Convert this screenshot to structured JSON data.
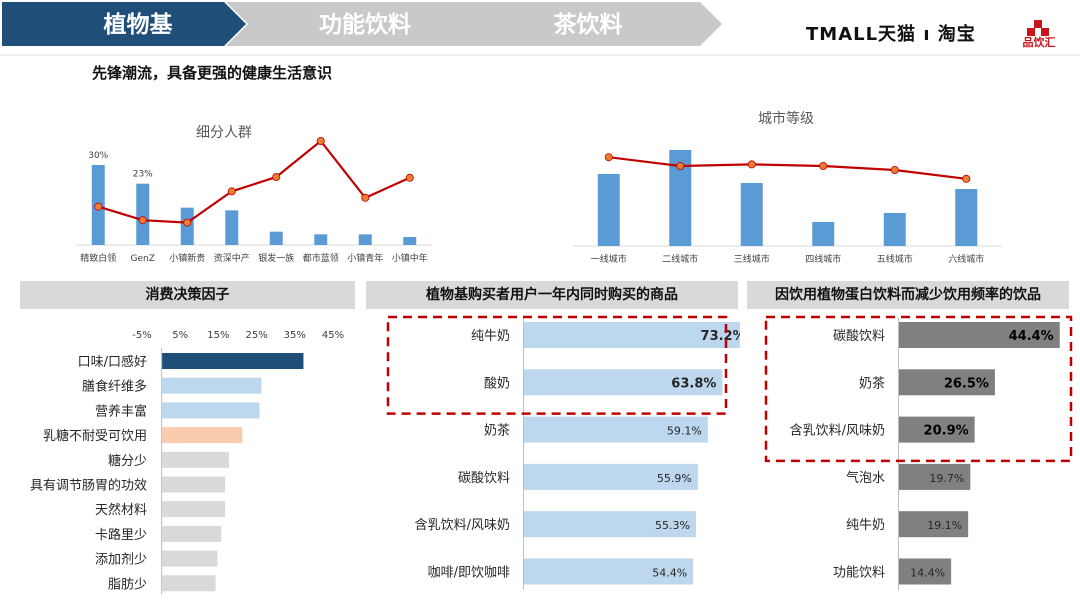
{
  "nav": {
    "steps": [
      {
        "label": "植物基",
        "active": true
      },
      {
        "label": "功能饮料",
        "active": false
      },
      {
        "label": "茶饮料",
        "active": false
      }
    ],
    "logo_tmall": "TMALL天猫 ı 淘宝",
    "logo_pinyinhui": "品饮汇"
  },
  "headline": "先锋潮流，具备更强的健康生活意识",
  "colors": {
    "nav_active": "#1f4e79",
    "nav_inactive": "#c9c9c9",
    "bar_blue": "#5b9bd5",
    "line_red": "#c00000",
    "dot_orange": "#ed7d31",
    "highlight_dark": "#1f4e79",
    "light_blue": "#bdd7ee",
    "peach": "#f8cbad",
    "grey_bar": "#d9d9d9",
    "dark_grey_bar": "#808080",
    "dashed_red": "#c00000"
  },
  "chart_data": [
    {
      "type": "bar",
      "title": "细分人群",
      "categories": [
        "精致白领",
        "GenZ",
        "小镇新贵",
        "资深中产",
        "银发一族",
        "都市蓝领",
        "小镇青年",
        "小镇中年"
      ],
      "series": [
        {
          "values": [
            30,
            23,
            14,
            13,
            5,
            4,
            4,
            3
          ],
          "render": "bar"
        },
        {
          "values": [
            0.48,
            0.31,
            0.28,
            0.67,
            0.85,
            1.3,
            0.59,
            0.84
          ],
          "render": "line"
        }
      ],
      "data_labels": [
        "30%",
        "23%",
        "",
        "",
        "",
        "",
        "",
        ""
      ],
      "ylim": [
        0,
        45
      ],
      "y2lim": [
        0,
        1.5
      ]
    },
    {
      "type": "bar",
      "title": "城市等级",
      "categories": [
        "一线城市",
        "二线城市",
        "三线城市",
        "四线城市",
        "五线城市",
        "六线城市"
      ],
      "series": [
        {
          "values": [
            24,
            32,
            21,
            8,
            11,
            19
          ],
          "render": "bar"
        },
        {
          "values": [
            1.11,
            1.0,
            1.02,
            1.0,
            0.95,
            0.84
          ],
          "render": "line"
        }
      ],
      "ylim": [
        0,
        40
      ],
      "y2lim": [
        0,
        1.5
      ]
    },
    {
      "type": "bar",
      "orientation": "horizontal",
      "title": "消费决策因子",
      "tick_labels": [
        "-5%",
        "5%",
        "15%",
        "25%",
        "35%",
        "45%"
      ],
      "xlim": [
        -5,
        45
      ],
      "categories": [
        "口味/口感好",
        "膳食纤维多",
        "营养丰富",
        "乳糖不耐受可饮用",
        "糖分少",
        "具有调节肠胃的功效",
        "天然材料",
        "卡路里少",
        "添加剂少",
        "脂肪少"
      ],
      "values": [
        37,
        26,
        25.5,
        21,
        17.5,
        16.5,
        16.5,
        15.5,
        14.5,
        14
      ],
      "bar_colors": [
        "#1f4e79",
        "#bdd7ee",
        "#bdd7ee",
        "#f8cbad",
        "#d9d9d9",
        "#d9d9d9",
        "#d9d9d9",
        "#d9d9d9",
        "#d9d9d9",
        "#d9d9d9"
      ]
    },
    {
      "type": "bar",
      "orientation": "horizontal",
      "title": "植物基购买者用户一年内同时购买的商品",
      "categories": [
        "纯牛奶",
        "酸奶",
        "奶茶",
        "碳酸饮料",
        "含乳饮料/风味奶",
        "咖啡/即饮咖啡"
      ],
      "values": [
        73.2,
        63.8,
        59.1,
        55.9,
        55.3,
        54.4
      ],
      "data_labels": [
        "73.2%",
        "63.8%",
        "59.1%",
        "55.9%",
        "55.3%",
        "54.4%"
      ],
      "highlighted": [
        "纯牛奶",
        "酸奶"
      ],
      "xlim": [
        0,
        100
      ]
    },
    {
      "type": "bar",
      "orientation": "horizontal",
      "title": "因饮用植物蛋白饮料而减少饮用频率的饮品",
      "categories": [
        "碳酸饮料",
        "奶茶",
        "含乳饮料/风味奶",
        "气泡水",
        "纯牛奶",
        "功能饮料"
      ],
      "values": [
        44.4,
        26.5,
        20.9,
        19.7,
        19.1,
        14.4
      ],
      "data_labels": [
        "44.4%",
        "26.5%",
        "20.9%",
        "19.7%",
        "19.1%",
        "14.4%"
      ],
      "highlighted": [
        "碳酸饮料",
        "奶茶",
        "含乳饮料/风味奶"
      ],
      "xlim": [
        0,
        50
      ]
    }
  ]
}
